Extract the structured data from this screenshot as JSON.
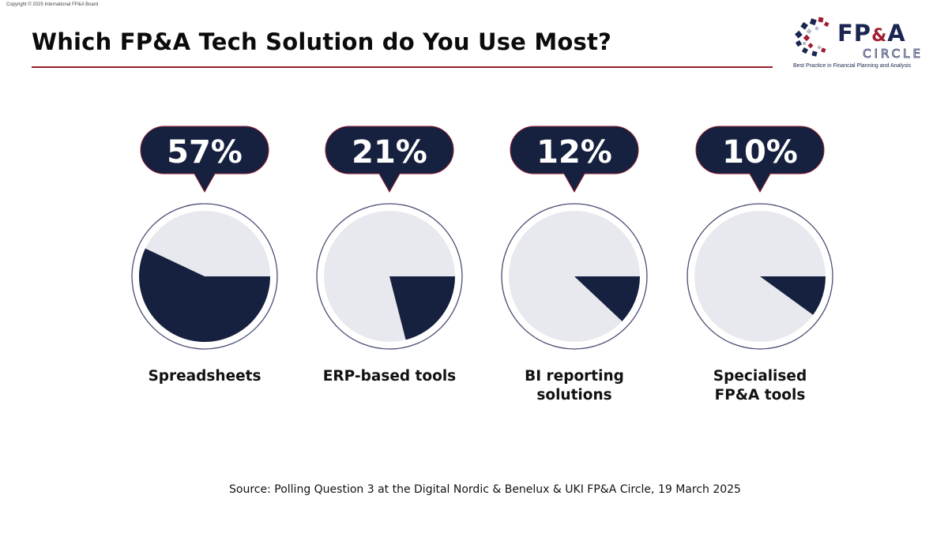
{
  "copyright": "Copyright © 2025 International FP&A Board",
  "header": {
    "title": "Which FP&A Tech Solution do You Use Most?"
  },
  "logo": {
    "fpa_prefix": "FP",
    "fpa_amp": "&",
    "fpa_suffix": "A",
    "circle": "CIRCLE",
    "tagline": "Best Practice in Financial Planning and Analysis"
  },
  "colors": {
    "navy": "#16203f",
    "bubble_border": "#8a1f33",
    "pie_rest": "#e8e9ee",
    "ring": "#4a4f74",
    "rule": "#9b1c2e"
  },
  "chart_data": {
    "type": "pie",
    "unit": "%",
    "categories": [
      "Spreadsheets",
      "ERP-based tools",
      "BI reporting solutions",
      "Specialised FP&A tools"
    ],
    "category_lines": [
      [
        "Spreadsheets"
      ],
      [
        "ERP-based tools"
      ],
      [
        "BI reporting",
        "solutions"
      ],
      [
        "Specialised",
        "FP&A tools"
      ]
    ],
    "values": [
      57,
      21,
      12,
      10
    ],
    "labels": [
      "57%",
      "21%",
      "12%",
      "10%"
    ]
  },
  "footer": {
    "source": "Source: Polling Question 3 at the Digital Nordic & Benelux & UKI FP&A Circle, 19 March 2025"
  }
}
